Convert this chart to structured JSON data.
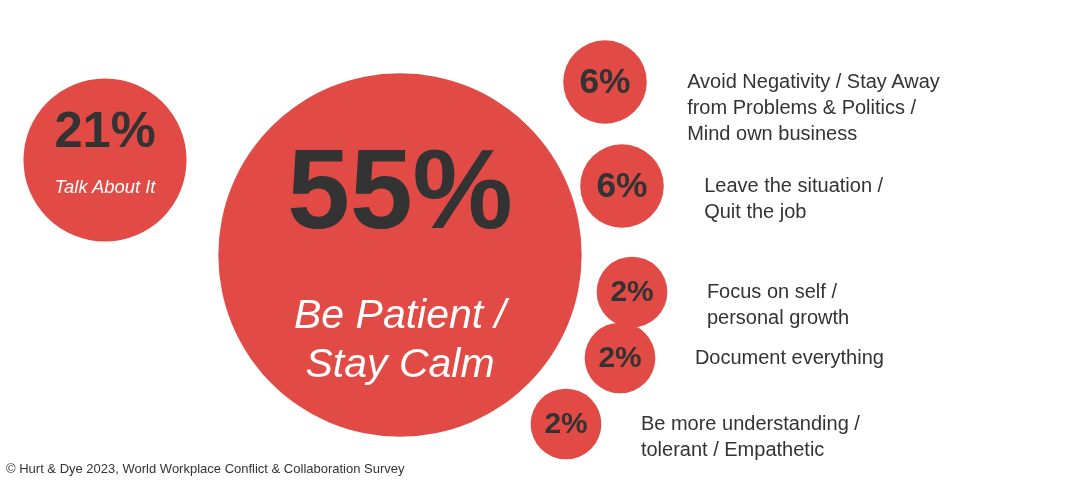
{
  "chart_data": {
    "type": "other",
    "categories": [
      "Talk About It",
      "Be Patient /\nStay Calm",
      "Avoid Negativity / Stay Away\nfrom Problems & Politics /\nMind own business",
      "Leave the situation /\nQuit the job",
      "Focus on self /\npersonal growth",
      "Document everything",
      "Be more understanding /\ntolerant / Empathetic"
    ],
    "values": [
      21,
      55,
      6,
      6,
      2,
      2,
      2
    ],
    "value_labels": [
      "21%",
      "55%",
      "6%",
      "6%",
      "2%",
      "2%",
      "2%"
    ],
    "color": "#e24a45",
    "annotations": [
      "© Hurt & Dye 2023, World Workplace Conflict & Collaboration Survey"
    ]
  }
}
